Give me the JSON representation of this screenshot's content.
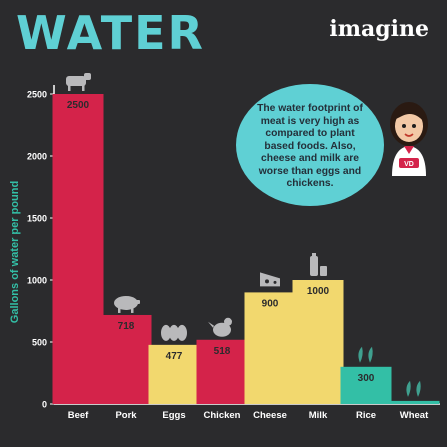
{
  "header": {
    "title": "WATER",
    "brand": "imagine"
  },
  "annotation": {
    "text": "The water footprint of meat is very high as compared to plant based foods. Also, cheese and milk are worse than eggs and chickens.",
    "avatar_badge": "VD"
  },
  "colors": {
    "background": "#2b2b2d",
    "title": "#5fd0d4",
    "meat": "#d4234a",
    "dairy_eggs": "#f2d86e",
    "plants": "#33bfa6",
    "axis_text": "#ffffff",
    "ylabel": "#33bfa6"
  },
  "chart_data": {
    "type": "bar",
    "title": "WATER",
    "xlabel": "",
    "ylabel": "Gallons of water per pound",
    "ylim": [
      0,
      2600
    ],
    "yticks": [
      0,
      500,
      1000,
      1500,
      2000,
      2500
    ],
    "categories": [
      "Beef",
      "Pork",
      "Eggs",
      "Chicken",
      "Cheese",
      "Milk",
      "Rice",
      "Wheat"
    ],
    "values": [
      2500,
      718,
      477,
      518,
      900,
      1000,
      300,
      25
    ],
    "bar_colors": [
      "#d4234a",
      "#d4234a",
      "#f2d86e",
      "#d4234a",
      "#f2d86e",
      "#f2d86e",
      "#33bfa6",
      "#33bfa6"
    ],
    "label_colors": [
      "#2b2b2d",
      "#2b2b2d",
      "#2b2b2d",
      "#2b2b2d",
      "#2b2b2d",
      "#2b2b2d",
      "#2b2b2d",
      "#2b2b2d"
    ],
    "icons": [
      "cow-icon",
      "pig-icon",
      "eggs-icon",
      "chicken-icon",
      "cheese-icon",
      "milk-icon",
      "rice-icon",
      "wheat-icon"
    ],
    "grid": false,
    "legend": "none"
  }
}
